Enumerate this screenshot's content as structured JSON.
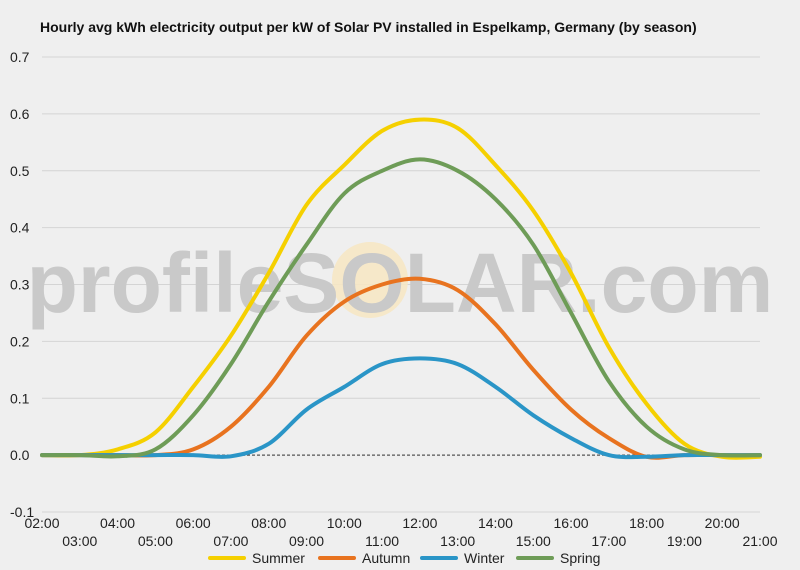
{
  "chart_data": {
    "type": "line",
    "title": "Hourly avg kWh electricity output per kW of Solar PV installed in Espelkamp, Germany (by season)",
    "watermark": "profileSOLAR.com",
    "xlabel": "",
    "ylabel": "",
    "ylim": [
      -0.1,
      0.7
    ],
    "yticks": [
      "-0.1",
      "0.0",
      "0.1",
      "0.2",
      "0.3",
      "0.4",
      "0.5",
      "0.6",
      "0.7"
    ],
    "xlim": [
      2,
      21
    ],
    "xticks_upper": [
      "02:00",
      "04:00",
      "06:00",
      "08:00",
      "10:00",
      "12:00",
      "14:00",
      "16:00",
      "18:00",
      "20:00"
    ],
    "xticks_lower": [
      "03:00",
      "05:00",
      "07:00",
      "09:00",
      "11:00",
      "13:00",
      "15:00",
      "17:00",
      "19:00",
      "21:00"
    ],
    "grid": true,
    "legend_position": "bottom",
    "x": [
      2,
      3,
      4,
      5,
      6,
      7,
      8,
      9,
      10,
      11,
      12,
      13,
      14,
      15,
      16,
      17,
      18,
      19,
      20,
      21
    ],
    "series": [
      {
        "name": "Summer",
        "color": "#f5d000",
        "values": [
          0.0,
          0.0,
          0.01,
          0.04,
          0.12,
          0.21,
          0.32,
          0.44,
          0.51,
          0.57,
          0.59,
          0.575,
          0.51,
          0.43,
          0.32,
          0.19,
          0.09,
          0.02,
          -0.003,
          -0.003
        ]
      },
      {
        "name": "Autumn",
        "color": "#e8731f",
        "values": [
          0.0,
          0.0,
          0.0,
          0.0,
          0.01,
          0.05,
          0.12,
          0.21,
          0.27,
          0.3,
          0.31,
          0.29,
          0.23,
          0.15,
          0.08,
          0.03,
          -0.003,
          0.0,
          0.0,
          0.0
        ]
      },
      {
        "name": "Winter",
        "color": "#2a95c7",
        "values": [
          0.0,
          0.0,
          0.0,
          0.0,
          0.0,
          -0.002,
          0.02,
          0.08,
          0.12,
          0.16,
          0.17,
          0.16,
          0.12,
          0.07,
          0.03,
          0.0,
          -0.003,
          0.0,
          0.0,
          0.0
        ]
      },
      {
        "name": "Spring",
        "color": "#6e9c57",
        "values": [
          0.0,
          0.0,
          -0.002,
          0.01,
          0.07,
          0.16,
          0.27,
          0.37,
          0.46,
          0.5,
          0.52,
          0.5,
          0.45,
          0.37,
          0.25,
          0.13,
          0.05,
          0.01,
          0.0,
          0.0
        ]
      }
    ]
  }
}
